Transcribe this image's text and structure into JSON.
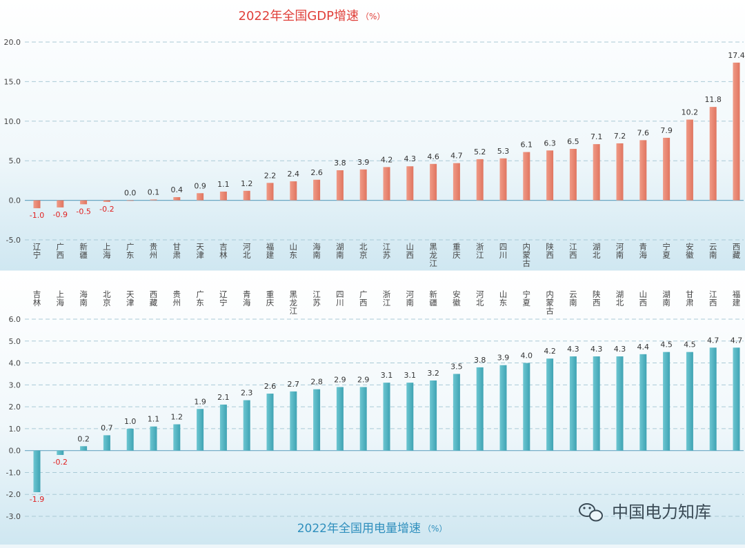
{
  "watermark": {
    "text": "中国电力知库",
    "icon": "wechat-icon"
  },
  "colors": {
    "gdp_bar": "#e8846f",
    "power_bar": "#4fb3c1",
    "gdp_title": "#e0403a",
    "power_title": "#2f8fbd",
    "negative_label": "#e02020"
  },
  "chart_data": [
    {
      "type": "bar",
      "title": "2022年全国GDP增速",
      "unit": "（%）",
      "ylim": [
        -5,
        20
      ],
      "yticks": [
        "20.0",
        "15.0",
        "10.0",
        "5.0",
        "0.0",
        "-5.0"
      ],
      "ytick_values": [
        20,
        15,
        10,
        5,
        0,
        -5
      ],
      "categories": [
        "辽宁",
        "广西",
        "新疆",
        "上海",
        "广东",
        "贵州",
        "甘肃",
        "天津",
        "吉林",
        "河北",
        "福建",
        "山东",
        "海南",
        "湖南",
        "北京",
        "江苏",
        "山西",
        "黑龙江",
        "重庆",
        "浙江",
        "四川",
        "内蒙古",
        "陕西",
        "江西",
        "湖北",
        "河南",
        "青海",
        "宁夏",
        "安徽",
        "云南",
        "西藏"
      ],
      "values": [
        -1.0,
        -0.9,
        -0.5,
        -0.2,
        0.0,
        0.1,
        0.4,
        0.9,
        1.1,
        1.2,
        2.2,
        2.4,
        2.6,
        3.8,
        3.9,
        4.2,
        4.3,
        4.6,
        4.7,
        5.2,
        5.3,
        6.1,
        6.3,
        6.5,
        7.1,
        7.2,
        7.6,
        7.9,
        10.2,
        11.8,
        17.4
      ],
      "value_labels": [
        "-1.0",
        "-0.9",
        "-0.5",
        "-0.2",
        "0.0",
        "0.1",
        "0.4",
        "0.9",
        "1.1",
        "1.2",
        "2.2",
        "2.4",
        "2.6",
        "3.8",
        "3.9",
        "4.2",
        "4.3",
        "4.6",
        "4.7",
        "5.2",
        "5.3",
        "6.1",
        "6.3",
        "6.5",
        "7.1",
        "7.2",
        "7.6",
        "7.9",
        "10.2",
        "11.8",
        "17.4"
      ]
    },
    {
      "type": "bar",
      "title": "2022年全国用电量增速",
      "unit": "（%）",
      "ylim": [
        -3,
        6
      ],
      "yticks": [
        "6.0",
        "5.0",
        "4.0",
        "3.0",
        "2.0",
        "1.0",
        "0.0",
        "-1.0",
        "-2.0",
        "-3.0"
      ],
      "ytick_values": [
        6,
        5,
        4,
        3,
        2,
        1,
        0,
        -1,
        -2,
        -3
      ],
      "categories": [
        "吉林",
        "上海",
        "海南",
        "北京",
        "天津",
        "西藏",
        "贵州",
        "广东",
        "辽宁",
        "青海",
        "重庆",
        "黑龙江",
        "江苏",
        "四川",
        "广西",
        "浙江",
        "河南",
        "新疆",
        "安徽",
        "河北",
        "山东",
        "宁夏",
        "内蒙古",
        "云南",
        "陕西",
        "湖北",
        "山西",
        "湖南",
        "甘肃",
        "江西",
        "福建"
      ],
      "values": [
        -1.9,
        -0.2,
        0.2,
        0.7,
        1.0,
        1.1,
        1.2,
        1.9,
        2.1,
        2.3,
        2.6,
        2.7,
        2.8,
        2.9,
        2.9,
        3.1,
        3.1,
        3.2,
        3.5,
        3.8,
        3.9,
        4.0,
        4.2,
        4.3,
        4.3,
        4.3,
        4.4,
        4.5,
        4.5,
        4.7,
        4.7
      ],
      "value_labels": [
        "-1.9",
        "-0.2",
        "0.2",
        "0.7",
        "1.0",
        "1.1",
        "1.2",
        "1.9",
        "2.1",
        "2.3",
        "2.6",
        "2.7",
        "2.8",
        "2.9",
        "2.9",
        "3.1",
        "3.1",
        "3.2",
        "3.5",
        "3.8",
        "3.9",
        "4.0",
        "4.2",
        "4.3",
        "4.3",
        "4.3",
        "4.4",
        "4.5",
        "4.5",
        "4.7",
        "4.7"
      ]
    }
  ]
}
